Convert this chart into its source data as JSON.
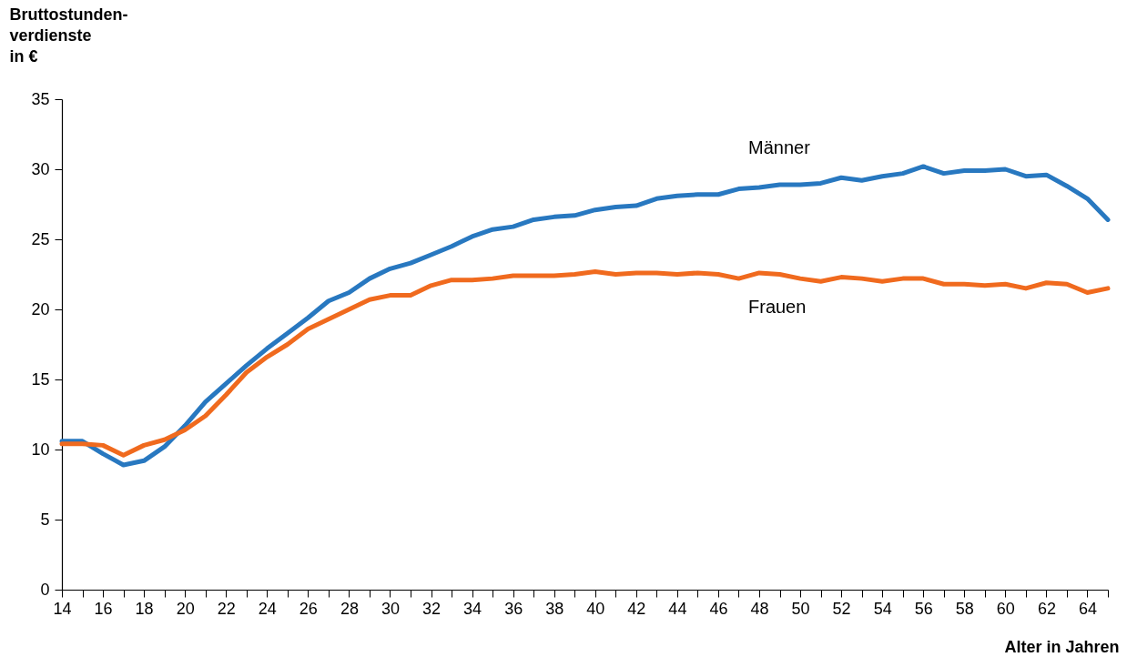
{
  "chart_data": {
    "type": "line",
    "xlabel": "Alter in Jahren",
    "ylabel": "Bruttostunden-\nverdienste\nin €",
    "x": [
      14,
      15,
      16,
      17,
      18,
      19,
      20,
      21,
      22,
      23,
      24,
      25,
      26,
      27,
      28,
      29,
      30,
      31,
      32,
      33,
      34,
      35,
      36,
      37,
      38,
      39,
      40,
      41,
      42,
      43,
      44,
      45,
      46,
      47,
      48,
      49,
      50,
      51,
      52,
      53,
      54,
      55,
      56,
      57,
      58,
      59,
      60,
      61,
      62,
      63,
      64,
      65
    ],
    "series": [
      {
        "name": "Männer",
        "color": "#2878c0",
        "values": [
          10.6,
          10.6,
          9.7,
          8.9,
          9.2,
          10.2,
          11.7,
          13.4,
          14.7,
          16.0,
          17.2,
          18.3,
          19.4,
          20.6,
          21.2,
          22.2,
          22.9,
          23.3,
          23.9,
          24.5,
          25.2,
          25.7,
          25.9,
          26.4,
          26.6,
          26.7,
          27.1,
          27.3,
          27.4,
          27.9,
          28.1,
          28.2,
          28.2,
          28.6,
          28.7,
          28.9,
          28.9,
          29.0,
          29.4,
          29.2,
          29.5,
          29.7,
          30.2,
          29.7,
          29.9,
          29.9,
          30.0,
          29.5,
          29.6,
          28.8,
          27.9,
          26.4
        ]
      },
      {
        "name": "Frauen",
        "color": "#f06a1e",
        "values": [
          10.4,
          10.4,
          10.3,
          9.6,
          10.3,
          10.7,
          11.4,
          12.4,
          13.9,
          15.5,
          16.6,
          17.5,
          18.6,
          19.3,
          20.0,
          20.7,
          21.0,
          21.0,
          21.7,
          22.1,
          22.1,
          22.2,
          22.4,
          22.4,
          22.4,
          22.5,
          22.7,
          22.5,
          22.6,
          22.6,
          22.5,
          22.6,
          22.5,
          22.2,
          22.6,
          22.5,
          22.2,
          22.0,
          22.3,
          22.2,
          22.0,
          22.2,
          22.2,
          21.8,
          21.8,
          21.7,
          21.8,
          21.5,
          21.9,
          21.8,
          21.2,
          21.5
        ]
      }
    ],
    "xlim": [
      14,
      65
    ],
    "xticks": [
      14,
      {
        "value": 15,
        "label": null
      },
      16,
      {
        "value": 17,
        "label": null
      },
      18,
      {
        "value": 19,
        "label": null
      },
      20,
      {
        "value": 21,
        "label": null
      },
      22,
      {
        "value": 23,
        "label": null
      },
      24,
      {
        "value": 25,
        "label": null
      },
      26,
      {
        "value": 27,
        "label": null
      },
      28,
      {
        "value": 29,
        "label": null
      },
      30,
      {
        "value": 31,
        "label": null
      },
      32,
      {
        "value": 33,
        "label": null
      },
      34,
      {
        "value": 35,
        "label": null
      },
      36,
      {
        "value": 37,
        "label": null
      },
      38,
      {
        "value": 39,
        "label": null
      },
      40,
      {
        "value": 41,
        "label": null
      },
      42,
      {
        "value": 43,
        "label": null
      },
      44,
      {
        "value": 45,
        "label": null
      },
      46,
      {
        "value": 47,
        "label": null
      },
      48,
      {
        "value": 49,
        "label": null
      },
      50,
      {
        "value": 51,
        "label": null
      },
      52,
      {
        "value": 53,
        "label": null
      },
      54,
      {
        "value": 55,
        "label": null
      },
      56,
      {
        "value": 57,
        "label": null
      },
      58,
      {
        "value": 59,
        "label": null
      },
      60,
      {
        "value": 61,
        "label": null
      },
      62,
      {
        "value": 63,
        "label": null
      },
      64,
      {
        "value": 65,
        "label": null
      }
    ],
    "ylim": [
      0,
      35
    ],
    "yticks": [
      0,
      5,
      10,
      15,
      20,
      25,
      30,
      35
    ],
    "grid": false,
    "legend": false,
    "line_style": "solid",
    "marker": "none"
  }
}
